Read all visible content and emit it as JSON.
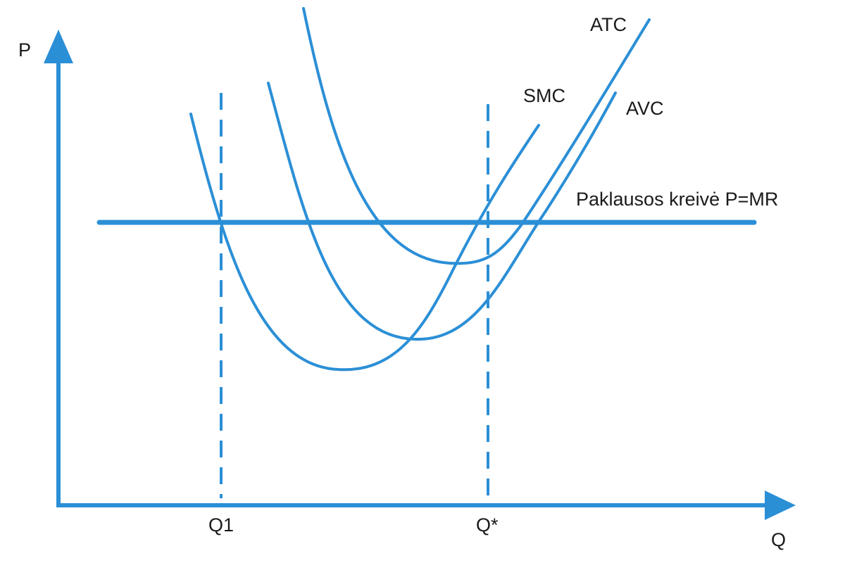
{
  "colors": {
    "line": "#2b8fd6",
    "text": "#1a1a1a",
    "background": "#ffffff"
  },
  "axes": {
    "y_label": "P",
    "x_label": "Q"
  },
  "markers": {
    "q1_label": "Q1",
    "qstar_label": "Q*"
  },
  "curves": {
    "atc_label": "ATC",
    "smc_label": "SMC",
    "avc_label": "AVC",
    "demand_label": "Paklausos kreivė P=MR"
  }
}
